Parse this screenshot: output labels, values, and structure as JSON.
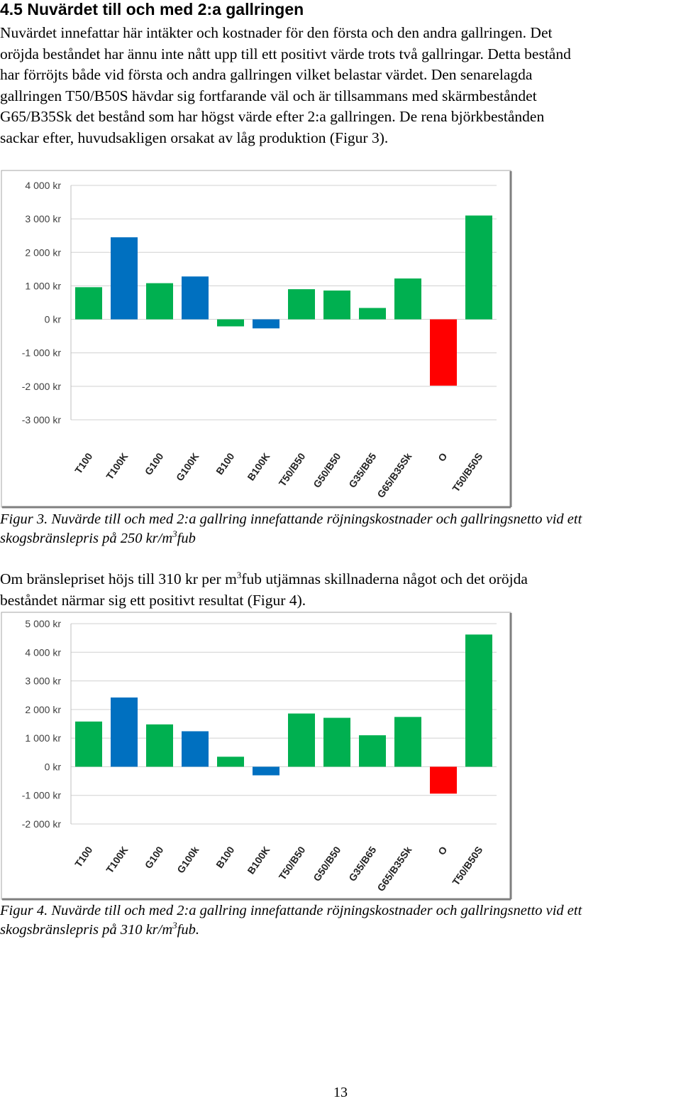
{
  "section": {
    "heading": "4.5 Nuvärdet till och med 2:a gallringen"
  },
  "paragraph1": {
    "lines": [
      "Nuvärdet innefattar här intäkter och kostnader för den första och den andra gallringen. Det",
      "oröjda beståndet har ännu inte nått upp till ett positivt värde trots två gallringar. Detta bestånd",
      "har förröjts både vid första och andra gallringen vilket belastar värdet. Den senarelagda",
      "gallringen T50/B50S hävdar sig fortfarande väl och är tillsammans med skärmbeståndet",
      "G65/B35Sk det bestånd som har högst värde efter 2:a gallringen. De rena björkbestånden",
      "sackar efter, huvudsakligen orsakat av låg produktion (Figur 3)."
    ]
  },
  "figure3_caption": {
    "line1": "Figur 3. Nuvärde till och med 2:a gallring innefattande röjningskostnader och gallringsnetto vid ett",
    "line2_before": "skogsbränslepris på 250 kr/m",
    "line2_sup": "3",
    "line2_after": "fub"
  },
  "paragraph2": {
    "line1_before": "Om bränslepriset höjs till 310 kr per m",
    "line1_sup": "3",
    "line1_after": "fub utjämnas skillnaderna något och det oröjda",
    "line2": "beståndet närmar sig ett positivt resultat (Figur 4)."
  },
  "figure4_caption": {
    "line1": "Figur 4. Nuvärde till och med 2:a gallring innefattande röjningskostnader och gallringsnetto vid ett",
    "line2_before": "skogsbränslepris på 310 kr/m",
    "line2_sup": "3",
    "line2_after": "fub."
  },
  "page_number": "13",
  "colors": {
    "green": "#00b050",
    "blue": "#0070c0",
    "red": "#ff0000"
  },
  "chart_data": [
    {
      "type": "bar",
      "title": "",
      "xlabel": "",
      "ylabel": "",
      "ylim": [
        -3000,
        4000
      ],
      "grid": true,
      "legend": "none",
      "categories": [
        "T100",
        "T100K",
        "G100",
        "G100K",
        "B100",
        "B100K",
        "T50/B50",
        "G50/B50",
        "G35/B65",
        "G65/B35Sk",
        "O",
        "T50/B50S"
      ],
      "values": [
        960,
        2450,
        1080,
        1280,
        -210,
        -270,
        900,
        860,
        340,
        1220,
        -1980,
        3100
      ],
      "bar_colors": [
        "green",
        "blue",
        "green",
        "blue",
        "green",
        "blue",
        "green",
        "green",
        "green",
        "green",
        "red",
        "green"
      ],
      "tick_values": [
        4000,
        3000,
        2000,
        1000,
        0,
        -1000,
        -2000,
        -3000
      ],
      "tick_labels": [
        "4 000 kr",
        "3 000 kr",
        "2 000 kr",
        "1 000 kr",
        "0 kr",
        "-1 000 kr",
        "-2 000 kr",
        "-3 000 kr"
      ]
    },
    {
      "type": "bar",
      "title": "",
      "xlabel": "",
      "ylabel": "",
      "ylim": [
        -2000,
        5000
      ],
      "grid": true,
      "legend": "none",
      "categories": [
        "T100",
        "T100K",
        "G100",
        "G100k",
        "B100",
        "B100K",
        "T50/B50",
        "G50/B50",
        "G35/B65",
        "G65/B35Sk",
        "O",
        "T50/B50S"
      ],
      "values": [
        1580,
        2420,
        1480,
        1240,
        350,
        -300,
        1860,
        1710,
        1100,
        1740,
        -940,
        4620
      ],
      "bar_colors": [
        "green",
        "blue",
        "green",
        "blue",
        "green",
        "blue",
        "green",
        "green",
        "green",
        "green",
        "red",
        "green"
      ],
      "tick_values": [
        5000,
        4000,
        3000,
        2000,
        1000,
        0,
        -1000,
        -2000
      ],
      "tick_labels": [
        "5 000 kr",
        "4 000 kr",
        "3 000 kr",
        "2 000 kr",
        "1 000 kr",
        "0 kr",
        "-1 000 kr",
        "-2 000 kr"
      ]
    }
  ]
}
